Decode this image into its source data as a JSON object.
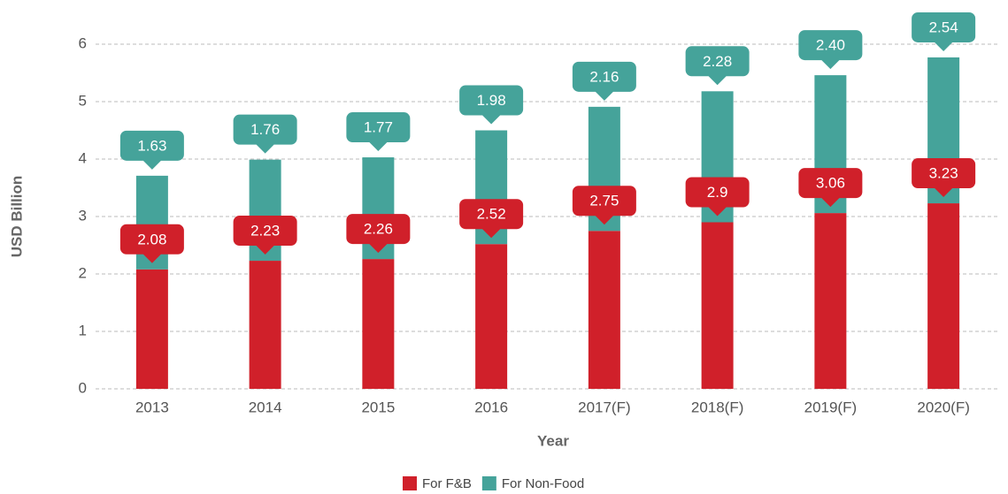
{
  "chart_data": {
    "type": "stacked_bar",
    "x_label": "Year",
    "y_label": "USD Billion",
    "categories": [
      "2013",
      "2014",
      "2015",
      "2016",
      "2017(F)",
      "2018(F)",
      "2019(F)",
      "2020(F)"
    ],
    "series": [
      {
        "name": "For F&B",
        "color": "#d0202a",
        "values": [
          2.08,
          2.23,
          2.26,
          2.52,
          2.75,
          2.9,
          3.06,
          3.23
        ]
      },
      {
        "name": "For Non-Food",
        "color": "#45a39a",
        "values": [
          1.63,
          1.76,
          1.77,
          1.98,
          2.16,
          2.28,
          2.4,
          2.54
        ],
        "value_labels": [
          "1.63",
          "1.76",
          "1.77",
          "1.98",
          "2.16",
          "2.28",
          "2.40",
          "2.54"
        ]
      }
    ],
    "ylim": [
      0,
      6
    ],
    "yticks": [
      0,
      1,
      2,
      3,
      4,
      5,
      6
    ],
    "grid": true,
    "legend": "bottom"
  }
}
